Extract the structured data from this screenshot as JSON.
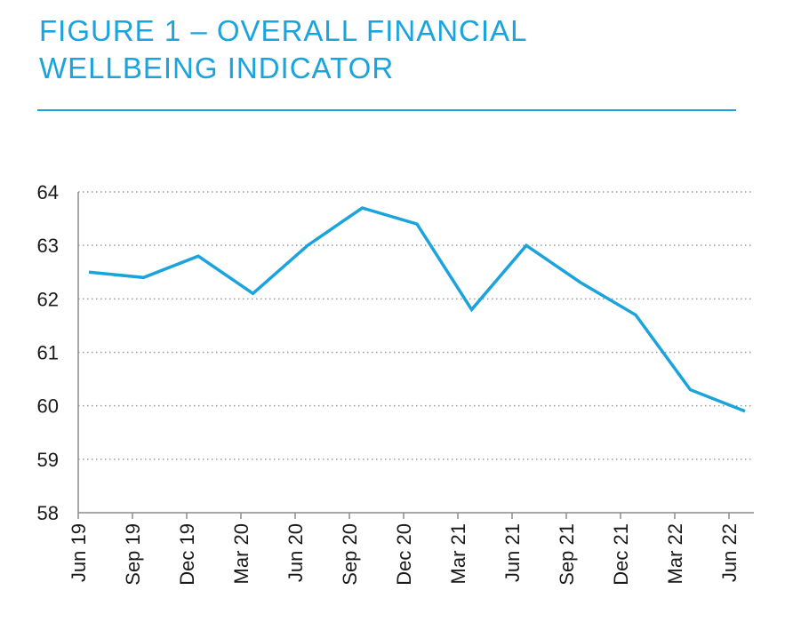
{
  "title_line1": "FIGURE 1 – OVERALL FINANCIAL",
  "title_line2": "WELLBEING INDICATOR",
  "colors": {
    "accent": "#1aa3dc",
    "axis": "#8c8c8c",
    "grid": "#9a9a9a",
    "text": "#1a1a1a"
  },
  "chart_data": {
    "type": "line",
    "categories": [
      "Jun 19",
      "Sep 19",
      "Dec 19",
      "Mar 20",
      "Jun 20",
      "Sep 20",
      "Dec 20",
      "Mar 21",
      "Jun 21",
      "Sep 21",
      "Dec 21",
      "Mar 22",
      "Jun 22"
    ],
    "series": [
      {
        "values": [
          62.5,
          62.4,
          62.8,
          62.1,
          63.0,
          63.7,
          63.4,
          61.8,
          63.0,
          62.3,
          61.7,
          60.3,
          59.9
        ]
      }
    ],
    "yticks": [
      58,
      59,
      60,
      61,
      62,
      63,
      64
    ],
    "ylim": [
      58,
      64
    ],
    "grid": true,
    "grid_style": "dotted horizontal",
    "xlabel": "",
    "ylabel": ""
  }
}
